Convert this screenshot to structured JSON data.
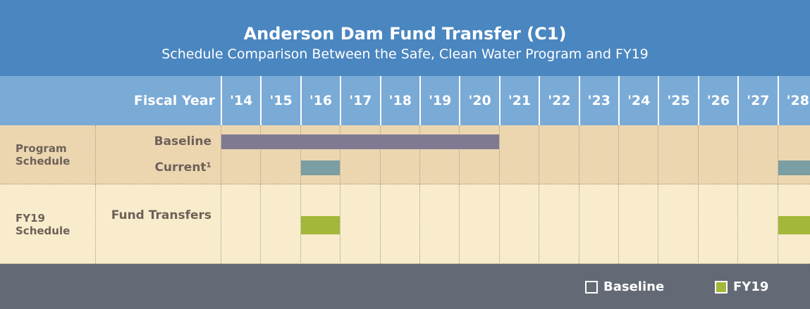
{
  "header": {
    "title": "Anderson Dam Fund Transfer (C1)",
    "subtitle": "Schedule Comparison Between the Safe, Clean Water Program and FY19"
  },
  "column_header": "Fiscal Year",
  "years": [
    "'14",
    "'15",
    "'16",
    "'17",
    "'18",
    "'19",
    "'20",
    "'21",
    "'22",
    "'23",
    "'24",
    "'25",
    "'26",
    "'27",
    "'28"
  ],
  "groups": [
    {
      "label": "Program Schedule",
      "rows": [
        {
          "label": "Baseline",
          "color": "#7f7a92",
          "bars": [
            {
              "start": "'14",
              "end": "'20"
            }
          ]
        },
        {
          "label": "Current¹",
          "color": "#7b9ea3",
          "bars": [
            {
              "start": "'16",
              "end": "'16"
            },
            {
              "start": "'28",
              "end": "'28"
            }
          ]
        }
      ]
    },
    {
      "label": "FY19 Schedule",
      "rows": [
        {
          "label": "Fund Transfers",
          "color": "#a3b83a",
          "bars": [
            {
              "start": "'16",
              "end": "'16"
            },
            {
              "start": "'28",
              "end": "'28"
            }
          ]
        }
      ]
    }
  ],
  "legend": [
    {
      "name": "Baseline",
      "color": "none"
    },
    {
      "name": "FY19",
      "color": "#a3b83a"
    }
  ]
}
